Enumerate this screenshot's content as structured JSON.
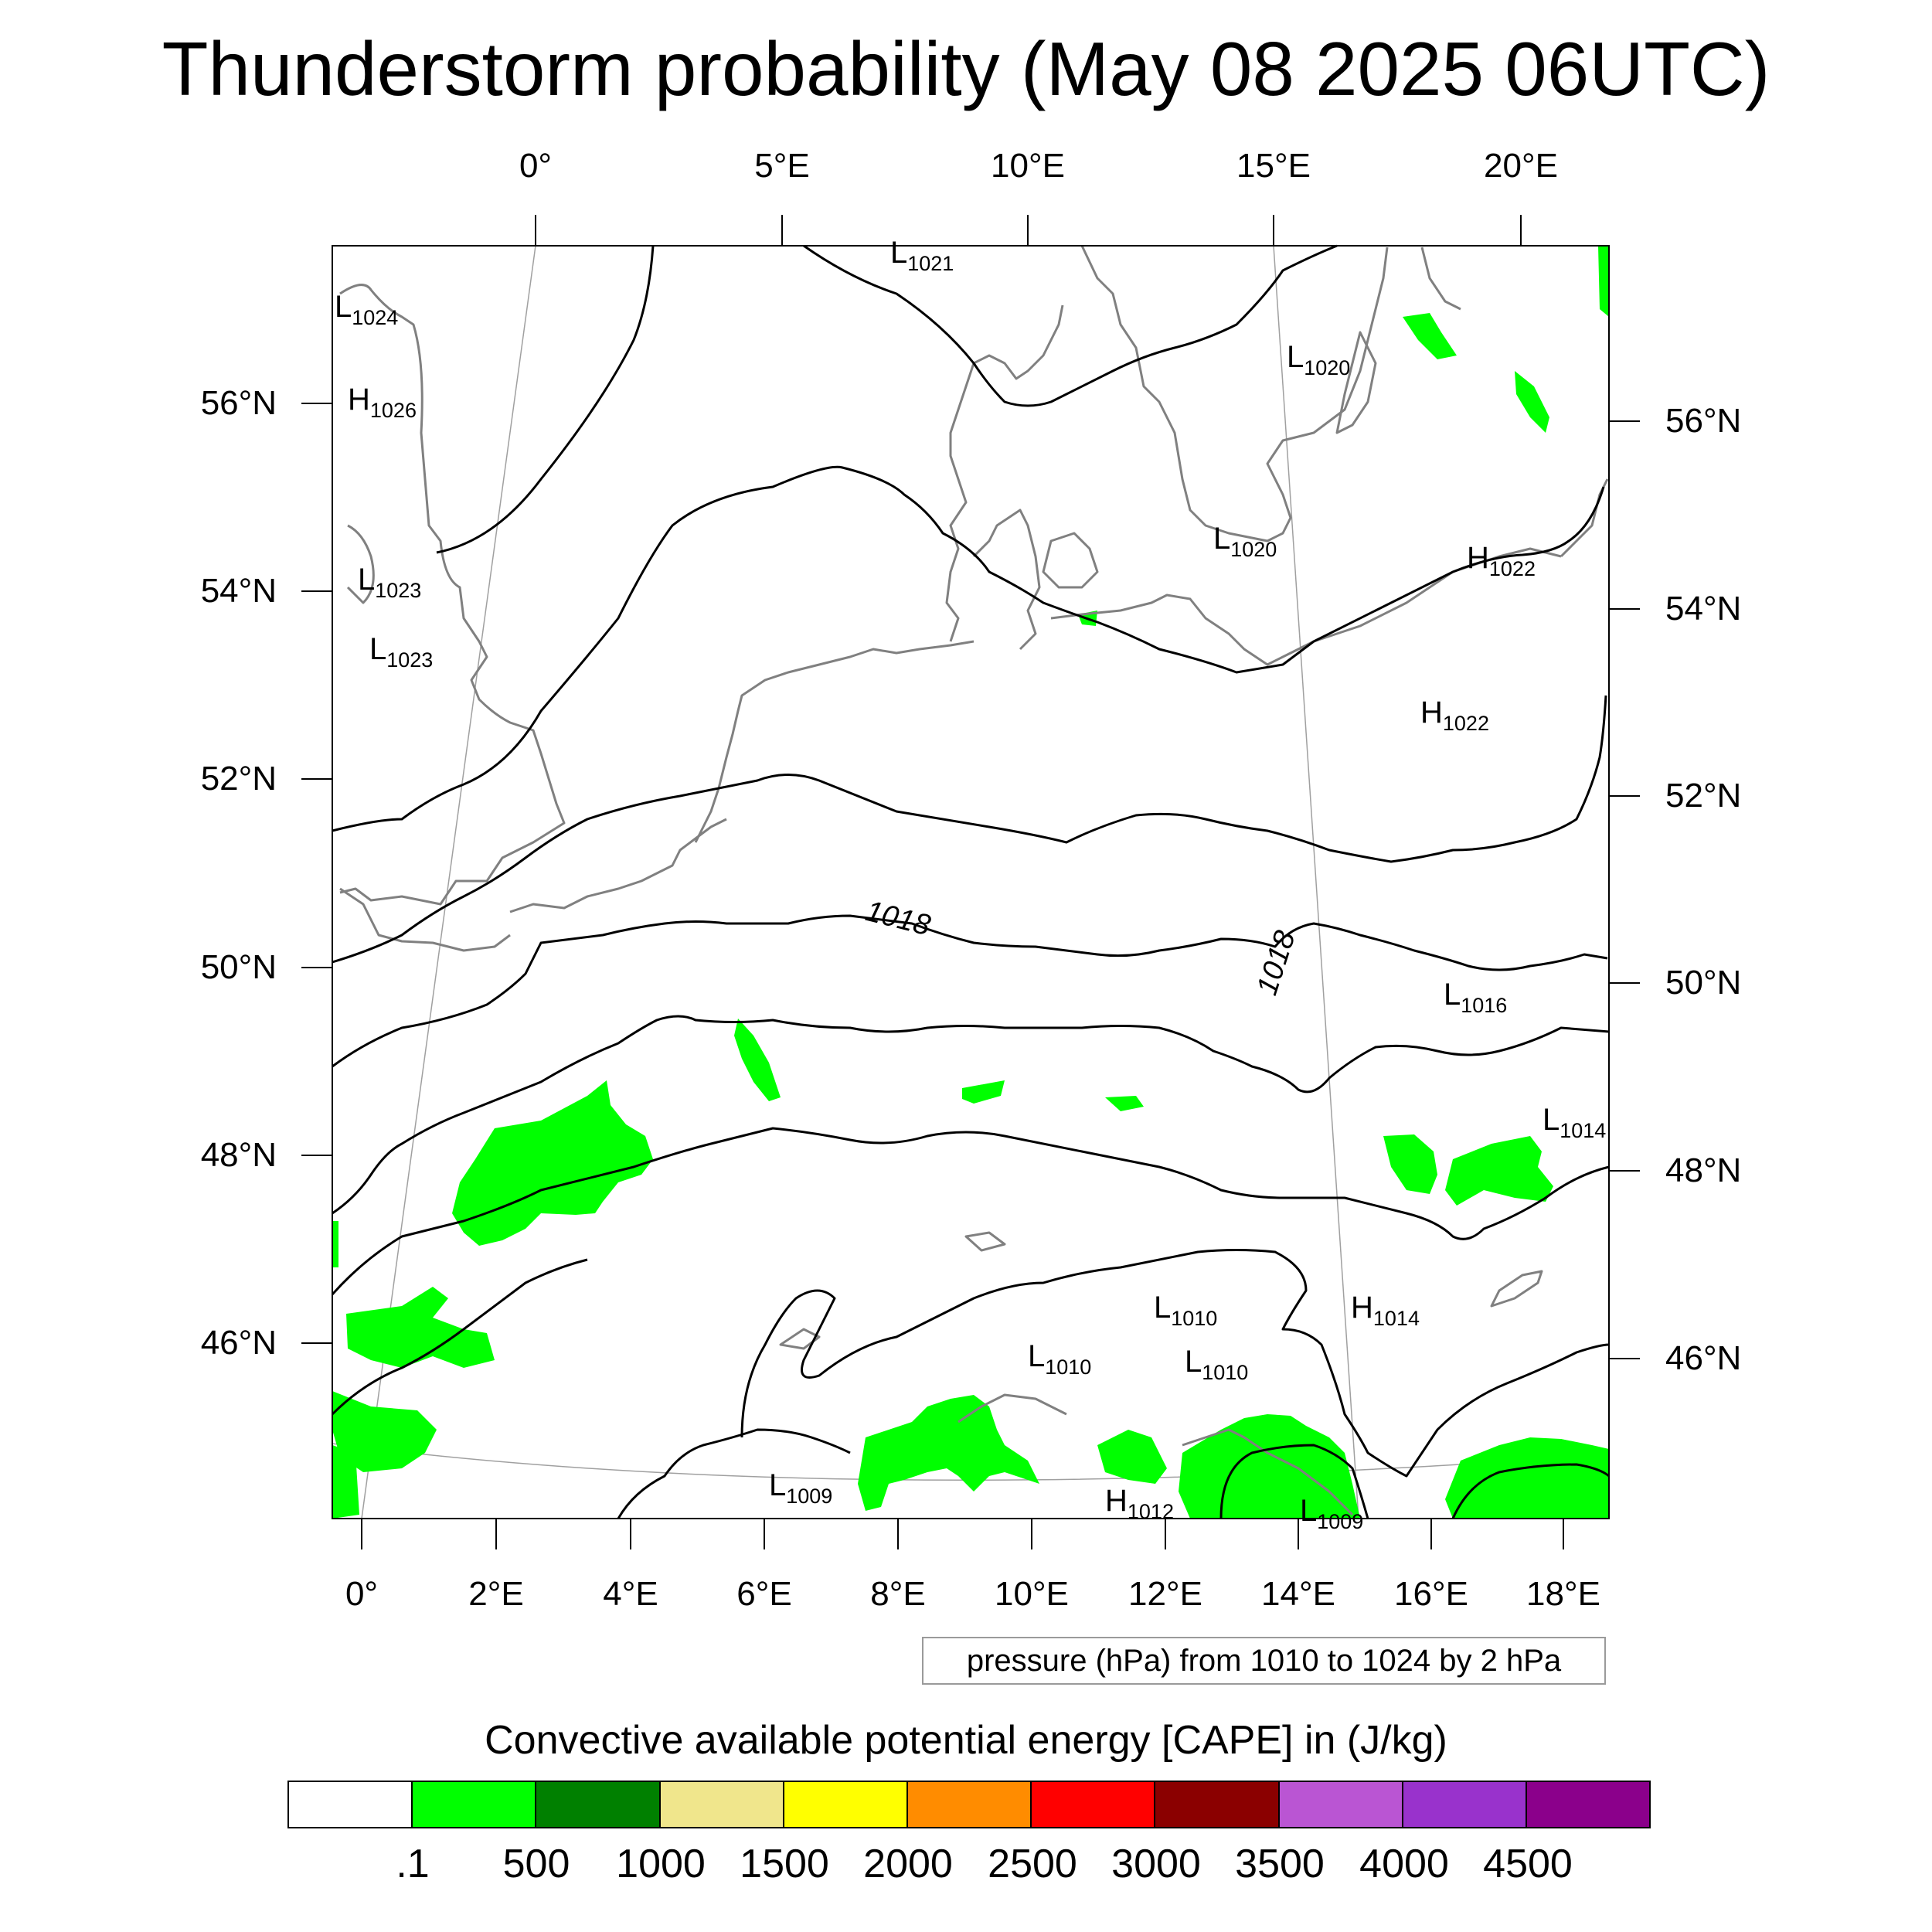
{
  "title": "Thunderstorm probability (May 08 2025 06UTC)",
  "map": {
    "top_lon_labels": [
      "0°",
      "5°E",
      "10°E",
      "15°E",
      "20°E"
    ],
    "bottom_lon_labels": [
      "0°",
      "2°E",
      "4°E",
      "6°E",
      "8°E",
      "10°E",
      "12°E",
      "14°E",
      "16°E",
      "18°E"
    ],
    "left_lat_labels": [
      "56°N",
      "54°N",
      "52°N",
      "50°N",
      "48°N",
      "46°N"
    ],
    "right_lat_labels": [
      "56°N",
      "54°N",
      "52°N",
      "50°N",
      "48°N",
      "46°N"
    ],
    "pressure_centers": [
      {
        "type": "L",
        "value": "1021"
      },
      {
        "type": "L",
        "value": "1024"
      },
      {
        "type": "H",
        "value": "1026"
      },
      {
        "type": "L",
        "value": "1020"
      },
      {
        "type": "L",
        "value": "1023"
      },
      {
        "type": "L",
        "value": "1023"
      },
      {
        "type": "L",
        "value": "1020"
      },
      {
        "type": "H",
        "value": "1022"
      },
      {
        "type": "H",
        "value": "1022"
      },
      {
        "type": "L",
        "value": "1016"
      },
      {
        "type": "L",
        "value": "1014"
      },
      {
        "type": "L",
        "value": "1010"
      },
      {
        "type": "H",
        "value": "1014"
      },
      {
        "type": "L",
        "value": "1010"
      },
      {
        "type": "L",
        "value": "1010"
      },
      {
        "type": "L",
        "value": "1009"
      },
      {
        "type": "H",
        "value": "1012"
      },
      {
        "type": "L",
        "value": "1009"
      }
    ],
    "isobar_labels": [
      "1018",
      "1018"
    ],
    "colors": {
      "cape_green": "#00ff00",
      "coastline": "#808080",
      "isobar": "#000000",
      "graticule": "#a0a0a0"
    }
  },
  "contour_note": "pressure (hPa) from 1010 to 1024 by 2 hPa",
  "colorbar": {
    "title": "Convective available potential energy [CAPE] in (J/kg)",
    "colors": [
      "#ffffff",
      "#00ff00",
      "#008000",
      "#f0e68c",
      "#ffff00",
      "#ff8c00",
      "#ff0000",
      "#8b0000",
      "#ba55d3",
      "#9932cc",
      "#8b008b"
    ],
    "labels": [
      ".1",
      "500",
      "1000",
      "1500",
      "2000",
      "2500",
      "3000",
      "3500",
      "4000",
      "4500"
    ]
  }
}
